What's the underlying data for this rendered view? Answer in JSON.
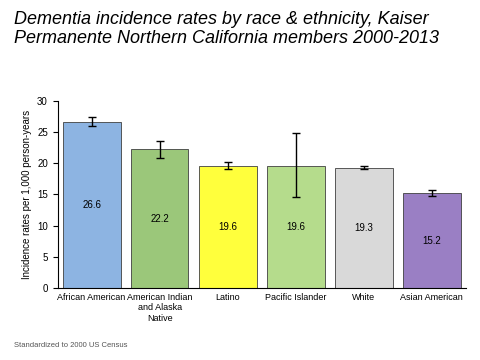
{
  "chart_data": {
    "type": "bar",
    "title": "Dementia incidence rates by race & ethnicity, Kaiser Permanente Northern California members 2000-2013",
    "y_label": "Incidence rates per 1,000 person-years",
    "categories": [
      "African American",
      "American Indian and Alaska Native",
      "Latino",
      "Pacific Islander",
      "White",
      "Asian American"
    ],
    "values": [
      26.6,
      22.2,
      19.6,
      19.6,
      19.3,
      15.2
    ],
    "ci_lower": [
      25.9,
      20.8,
      19.1,
      14.6,
      19.0,
      14.8
    ],
    "ci_upper": [
      27.4,
      23.6,
      20.2,
      24.8,
      19.6,
      15.7
    ],
    "colors": [
      "#8db4e2",
      "#9bc77a",
      "#ffff3c",
      "#b5dc8c",
      "#d9d9d9",
      "#9a7fc4"
    ],
    "data_labels": true,
    "grid": false,
    "ylim": [
      0,
      30
    ],
    "yticks": [
      0,
      5,
      10,
      15,
      20,
      25,
      30
    ],
    "footnote": "Standardized to 2000 US Census"
  }
}
